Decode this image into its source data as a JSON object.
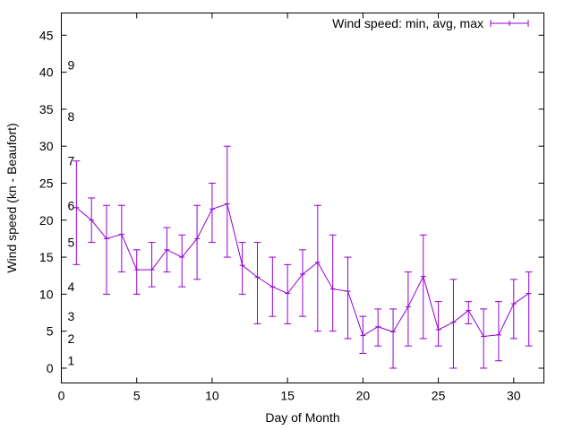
{
  "chart_data": {
    "type": "line",
    "title": "",
    "xlabel": "Day of Month",
    "ylabel": "Wind speed (kn - Beaufort)",
    "xlim": [
      0,
      32
    ],
    "ylim": [
      -2,
      48
    ],
    "xticks": [
      0,
      5,
      10,
      15,
      20,
      25,
      30
    ],
    "yticks": [
      0,
      5,
      10,
      15,
      20,
      25,
      30,
      35,
      40,
      45
    ],
    "beaufort_labels": [
      {
        "label": "1",
        "value": 1
      },
      {
        "label": "2",
        "value": 4
      },
      {
        "label": "3",
        "value": 7
      },
      {
        "label": "4",
        "value": 11
      },
      {
        "label": "5",
        "value": 17
      },
      {
        "label": "6",
        "value": 22
      },
      {
        "label": "7",
        "value": 28
      },
      {
        "label": "8",
        "value": 34
      },
      {
        "label": "9",
        "value": 41
      }
    ],
    "grid": false,
    "legend_position": "top-right",
    "series": [
      {
        "name": "Wind speed: min, avg, max",
        "color": "#9400d3",
        "x": [
          1,
          2,
          3,
          4,
          5,
          6,
          7,
          8,
          9,
          10,
          11,
          12,
          13,
          14,
          15,
          16,
          17,
          18,
          19,
          20,
          21,
          22,
          23,
          24,
          25,
          26,
          27,
          28,
          29,
          30,
          31
        ],
        "min": [
          14,
          17,
          10,
          13,
          10,
          11,
          13,
          11,
          12,
          17,
          15,
          10,
          6,
          7,
          6,
          7,
          5,
          5,
          4,
          2,
          3,
          0,
          3,
          4,
          3,
          0,
          6,
          0,
          1,
          4,
          3
        ],
        "avg": [
          21.7,
          20,
          17.5,
          18.1,
          13.3,
          13.3,
          16,
          15,
          17.5,
          21.5,
          22.2,
          13.9,
          12.3,
          11,
          10.1,
          12.7,
          14.3,
          10.7,
          10.4,
          4.4,
          5.6,
          4.9,
          8.3,
          12.4,
          5.2,
          6.2,
          7.8,
          4.3,
          4.5,
          8.7,
          10.1
        ],
        "max": [
          28,
          23,
          22,
          22,
          16,
          17,
          19,
          18,
          22,
          25,
          30,
          17,
          17,
          15,
          14,
          16,
          22,
          18,
          15,
          7,
          8,
          8,
          13,
          18,
          9,
          12,
          9,
          8,
          9,
          12,
          13
        ]
      }
    ]
  }
}
